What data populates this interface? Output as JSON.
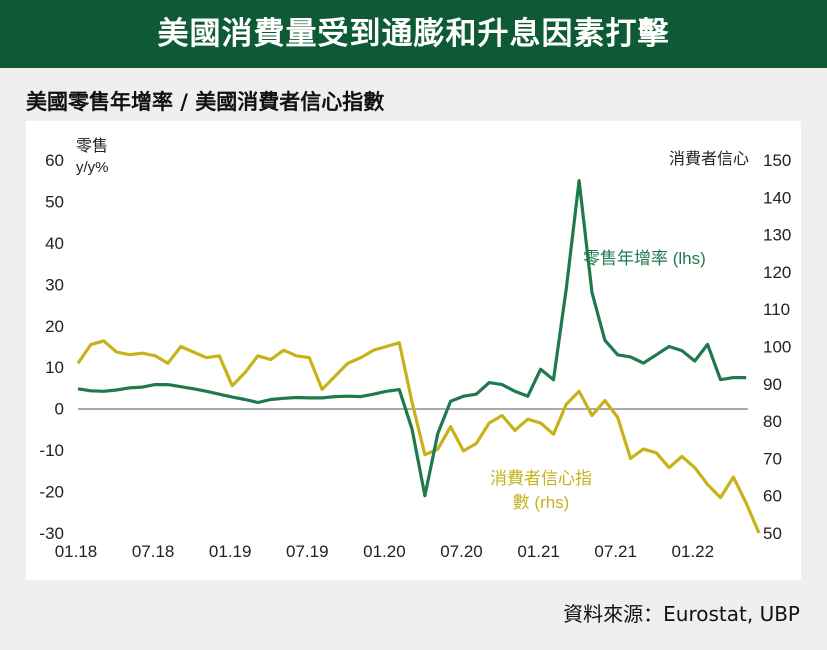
{
  "banner": {
    "title": "美國消費量受到通膨和升息因素打擊"
  },
  "subtitle": "美國零售年增率 / 美國消費者信心指數",
  "source": "資料來源：Eurostat, UBP",
  "colors": {
    "banner": "#0d5a35",
    "retail": "#1e7a4c",
    "confidence": "#c8b21a"
  },
  "chart_data": {
    "type": "line",
    "left_axis": {
      "title_line1": "零售",
      "title_line2": "y/y%",
      "range": [
        -30,
        60
      ],
      "ticks": [
        "60",
        "50",
        "40",
        "30",
        "20",
        "10",
        "0",
        "-10",
        "-20",
        "-30"
      ]
    },
    "right_axis": {
      "title": "消費者信心",
      "range": [
        50,
        150
      ],
      "ticks": [
        "150",
        "140",
        "130",
        "120",
        "110",
        "100",
        "90",
        "80",
        "70",
        "60",
        "50"
      ]
    },
    "x_ticks": [
      "01.18",
      "07.18",
      "01.19",
      "07.19",
      "01.20",
      "07.20",
      "01.21",
      "07.21",
      "01.22"
    ],
    "series": [
      {
        "name": "零售年增率 (lhs)",
        "axis": "left",
        "values": [
          4.8,
          4.3,
          4.2,
          4.5,
          5.0,
          5.2,
          5.8,
          5.8,
          5.3,
          4.8,
          4.2,
          3.5,
          2.8,
          2.2,
          1.5,
          2.2,
          2.5,
          2.7,
          2.6,
          2.6,
          2.9,
          3.0,
          2.9,
          3.5,
          4.2,
          4.6,
          -5.0,
          -21.0,
          -6.0,
          1.8,
          3.0,
          3.5,
          6.3,
          5.8,
          4.2,
          3.0,
          9.5,
          7.0,
          29.0,
          55.0,
          28.0,
          16.5,
          13.0,
          12.5,
          11.0,
          13.0,
          15.0,
          14.0,
          11.5,
          15.5,
          7.0,
          7.5,
          7.5
        ]
      },
      {
        "name_line1": "消費者信心指",
        "name_line2": "數 (rhs)",
        "axis": "right",
        "values": [
          95.5,
          100.5,
          101.5,
          98.5,
          97.8,
          98.2,
          97.5,
          95.5,
          100.0,
          98.5,
          97.0,
          97.5,
          89.5,
          93.0,
          97.5,
          96.5,
          99.0,
          97.5,
          97.0,
          88.5,
          92.0,
          95.5,
          97.0,
          99.0,
          100.0,
          101.0,
          85.0,
          71.0,
          72.5,
          78.5,
          72.0,
          74.0,
          79.5,
          81.5,
          77.5,
          80.5,
          79.5,
          76.5,
          84.5,
          88.0,
          81.5,
          85.5,
          81.0,
          70.0,
          72.5,
          71.5,
          67.5,
          70.5,
          67.5,
          63.0,
          59.5,
          65.0,
          58.0,
          50.0
        ]
      }
    ],
    "grid": "off"
  }
}
